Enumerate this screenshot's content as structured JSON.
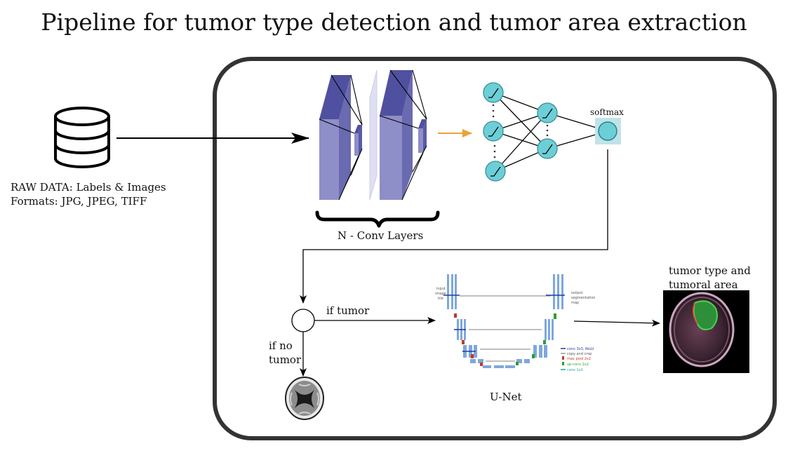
{
  "title": "Pipeline for tumor type detection and tumor  area extraction",
  "input": {
    "line1": "RAW DATA: Labels & Images",
    "line2": "Formats: JPG, JPEG, TIFF",
    "icon": "database-icon"
  },
  "cnn": {
    "label": "N - Conv Layers"
  },
  "dense": {
    "softmax_label": "softmax"
  },
  "branch": {
    "yes_label": "if tumor",
    "no_label_line1": "if no",
    "no_label_line2": "tumor"
  },
  "unet": {
    "label": "U-Net",
    "input_text": [
      "input",
      "image",
      "tile"
    ],
    "output_text": [
      "output",
      "segmentation",
      "map"
    ],
    "legend": [
      {
        "text": "conv 3x3, ReLU",
        "color": "#1f3aa8"
      },
      {
        "text": "copy and crop",
        "color": "#9a9a9a"
      },
      {
        "text": "max pool 2x2",
        "color": "#c0392b"
      },
      {
        "text": "up-conv 2x2",
        "color": "#2e9e2e"
      },
      {
        "text": "conv 1x1",
        "color": "#17a2a2"
      }
    ]
  },
  "result": {
    "line1": "tumor type and",
    "line2": "tumoral area"
  },
  "colors": {
    "conv_front": "#8e8ec8",
    "conv_side": "#6a6ab0",
    "conv_top": "#5050a0",
    "neuron": "#6ccfd8",
    "softmax_bg": "#bfe3e8",
    "arrow_orange": "#e8a33a",
    "frame": "#333333"
  }
}
